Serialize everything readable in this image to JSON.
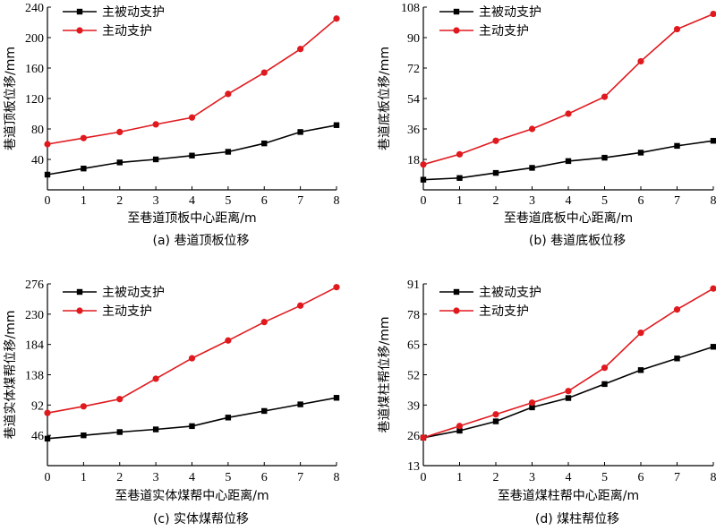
{
  "chart_data": [
    {
      "type": "line",
      "caption": "(a)  巷道顶板位移",
      "xlabel": "至巷道顶板中心距离/m",
      "ylabel": "巷道顶板位移/mm",
      "x": [
        0,
        1,
        2,
        3,
        4,
        5,
        6,
        7,
        8
      ],
      "xlim": [
        0,
        8
      ],
      "ylim": [
        0,
        240
      ],
      "yticks": [
        40,
        80,
        120,
        160,
        200,
        240
      ],
      "series": [
        {
          "name": "主被动支护",
          "color": "#000000",
          "marker": "square",
          "values": [
            20,
            28,
            36,
            40,
            45,
            50,
            61,
            76,
            85
          ]
        },
        {
          "name": "主动支护",
          "color": "#e0191e",
          "marker": "circle",
          "values": [
            60,
            68,
            76,
            86,
            95,
            126,
            154,
            185,
            225
          ]
        }
      ]
    },
    {
      "type": "line",
      "caption": "(b)  巷道底板位移",
      "xlabel": "至巷道底板中心距离/m",
      "ylabel": "巷道底板位移/mm",
      "x": [
        0,
        1,
        2,
        3,
        4,
        5,
        6,
        7,
        8
      ],
      "xlim": [
        0,
        8
      ],
      "ylim": [
        0,
        108
      ],
      "yticks": [
        18,
        36,
        54,
        72,
        90,
        108
      ],
      "series": [
        {
          "name": "主被动支护",
          "color": "#000000",
          "marker": "square",
          "values": [
            6,
            7,
            10,
            13,
            17,
            19,
            22,
            26,
            29
          ]
        },
        {
          "name": "主动支护",
          "color": "#e0191e",
          "marker": "circle",
          "values": [
            15,
            21,
            29,
            36,
            45,
            55,
            76,
            95,
            104
          ]
        }
      ]
    },
    {
      "type": "line",
      "caption": "(c)  实体煤帮位移",
      "xlabel": "至巷道实体煤帮中心距离/m",
      "ylabel": "巷道实体煤帮位移/mm",
      "x": [
        0,
        1,
        2,
        3,
        4,
        5,
        6,
        7,
        8
      ],
      "xlim": [
        0,
        8
      ],
      "ylim": [
        0,
        276
      ],
      "yticks": [
        46,
        92,
        138,
        184,
        230,
        276
      ],
      "series": [
        {
          "name": "主被动支护",
          "color": "#000000",
          "marker": "square",
          "values": [
            41,
            46,
            51,
            55,
            60,
            73,
            83,
            93,
            103
          ]
        },
        {
          "name": "主动支护",
          "color": "#e0191e",
          "marker": "circle",
          "values": [
            80,
            90,
            101,
            132,
            163,
            190,
            218,
            243,
            271
          ]
        }
      ]
    },
    {
      "type": "line",
      "caption": "(d)  煤柱帮位移",
      "xlabel": "至巷道煤柱帮中心距离/m",
      "ylabel": "巷道煤柱帮位移/mm",
      "x": [
        0,
        1,
        2,
        3,
        4,
        5,
        6,
        7,
        8
      ],
      "xlim": [
        0,
        8
      ],
      "ylim": [
        13,
        91
      ],
      "yticks": [
        13,
        26,
        39,
        52,
        65,
        78,
        91
      ],
      "series": [
        {
          "name": "主被动支护",
          "color": "#000000",
          "marker": "square",
          "values": [
            25,
            28,
            32,
            38,
            42,
            48,
            54,
            59,
            64
          ]
        },
        {
          "name": "主动支护",
          "color": "#e0191e",
          "marker": "circle",
          "values": [
            25,
            30,
            35,
            40,
            45,
            55,
            70,
            80,
            89
          ]
        }
      ]
    }
  ]
}
